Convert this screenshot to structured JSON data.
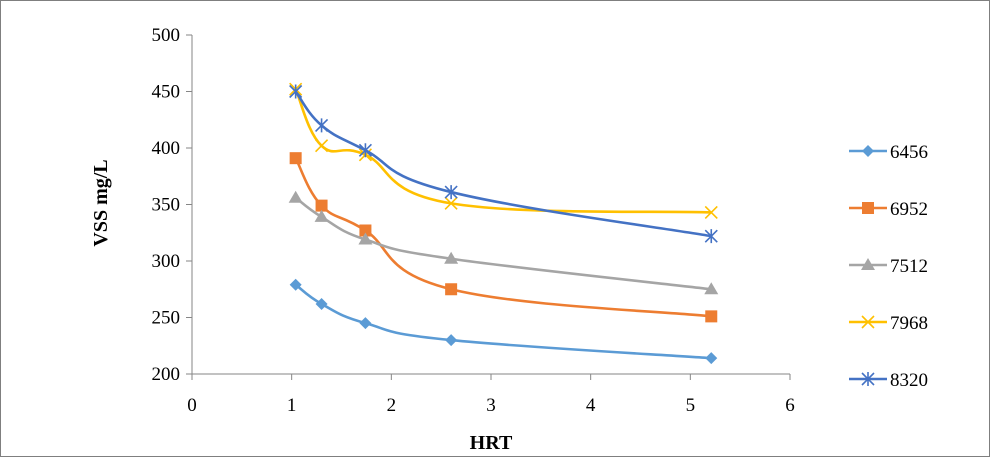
{
  "chart_data": {
    "type": "line",
    "title": "",
    "xlabel": "HRT",
    "ylabel": "VSS mg/L",
    "xlim": [
      0,
      6
    ],
    "ylim": [
      200,
      500
    ],
    "xticks": [
      0,
      1,
      2,
      3,
      4,
      5,
      6
    ],
    "yticks": [
      200,
      250,
      300,
      350,
      400,
      450,
      500
    ],
    "grid": false,
    "legend_position": "right",
    "series": [
      {
        "name": "6456",
        "color": "#5b9bd5",
        "marker": "diamond",
        "x": [
          1.04,
          1.3,
          1.74,
          2.6,
          5.21
        ],
        "y": [
          279,
          262,
          245,
          230,
          214
        ]
      },
      {
        "name": "6952",
        "color": "#ed7d31",
        "marker": "square",
        "x": [
          1.04,
          1.3,
          1.74,
          2.6,
          5.21
        ],
        "y": [
          391,
          349,
          327,
          275,
          251
        ]
      },
      {
        "name": "7512",
        "color": "#a5a5a5",
        "marker": "triangle",
        "x": [
          1.04,
          1.3,
          1.74,
          2.6,
          5.21
        ],
        "y": [
          356,
          339,
          319,
          302,
          275
        ]
      },
      {
        "name": "7968",
        "color": "#ffc000",
        "marker": "x",
        "x": [
          1.04,
          1.3,
          1.74,
          2.6,
          5.21
        ],
        "y": [
          452,
          402,
          394,
          351,
          343
        ]
      },
      {
        "name": "8320",
        "color": "#4472c4",
        "marker": "star",
        "x": [
          1.04,
          1.3,
          1.74,
          2.6,
          5.21
        ],
        "y": [
          450,
          420,
          398,
          361,
          322
        ]
      }
    ]
  }
}
